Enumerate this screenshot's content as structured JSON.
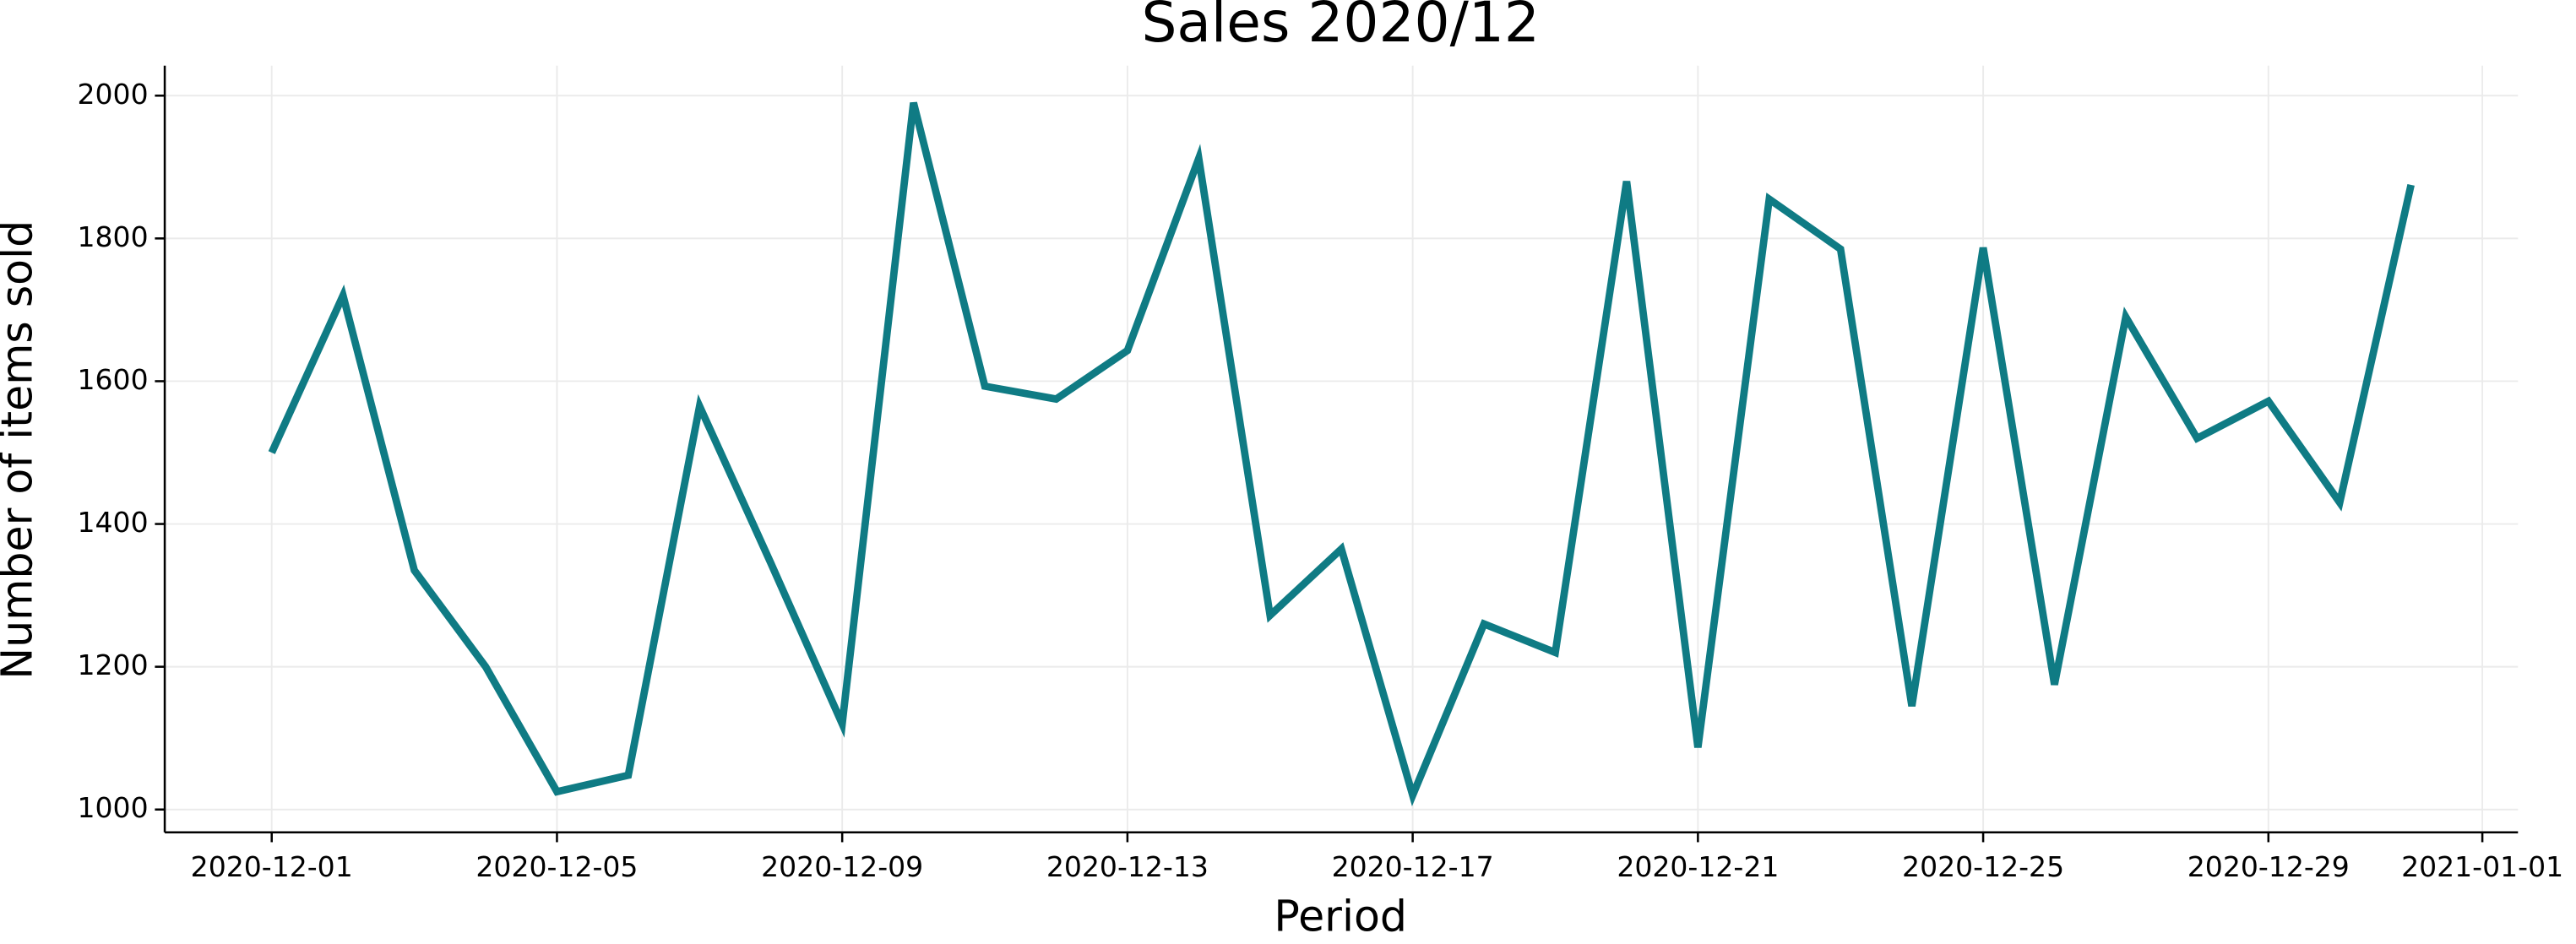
{
  "chart_data": {
    "type": "line",
    "title": "Sales 2020/12",
    "x_label": "Period",
    "y_label": "Number of items sold",
    "x": [
      "2020-12-01",
      "2020-12-02",
      "2020-12-03",
      "2020-12-04",
      "2020-12-05",
      "2020-12-06",
      "2020-12-07",
      "2020-12-08",
      "2020-12-09",
      "2020-12-10",
      "2020-12-11",
      "2020-12-12",
      "2020-12-13",
      "2020-12-14",
      "2020-12-15",
      "2020-12-16",
      "2020-12-17",
      "2020-12-18",
      "2020-12-19",
      "2020-12-20",
      "2020-12-21",
      "2020-12-22",
      "2020-12-23",
      "2020-12-24",
      "2020-12-25",
      "2020-12-26",
      "2020-12-27",
      "2020-12-28",
      "2020-12-29",
      "2020-12-30",
      "2020-12-31"
    ],
    "series": [
      {
        "color": "#0f7b84",
        "values": [
          1500,
          1720,
          1335,
          1200,
          1025,
          1048,
          1565,
          1345,
          1120,
          1990,
          1593,
          1575,
          1643,
          1912,
          1272,
          1365,
          1020,
          1260,
          1220,
          1880,
          1087,
          1855,
          1785,
          1145,
          1787,
          1175,
          1690,
          1520,
          1572,
          1430,
          1875
        ]
      }
    ],
    "xlim": [
      "2020-11-29T12:00:00Z",
      "2021-01-01T12:00:00Z"
    ],
    "xticks": [
      "2020-12-01",
      "2020-12-05",
      "2020-12-09",
      "2020-12-13",
      "2020-12-17",
      "2020-12-21",
      "2020-12-25",
      "2020-12-29",
      "2021-01-01"
    ],
    "ylim": [
      968,
      2042
    ],
    "yticks": [
      1000,
      1200,
      1400,
      1600,
      1800,
      2000
    ],
    "grid": true
  }
}
